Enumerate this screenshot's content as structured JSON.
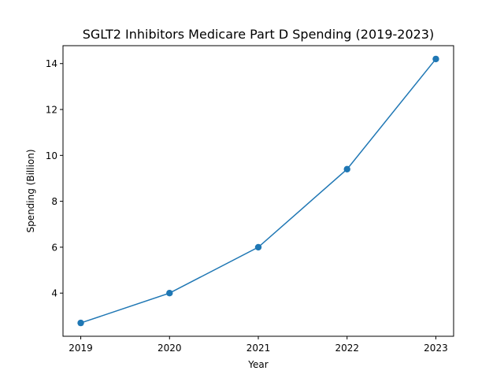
{
  "chart_data": {
    "type": "line",
    "title": "SGLT2 Inhibitors Medicare Part D Spending (2019-2023)",
    "xlabel": "Year",
    "ylabel": "Spending (Billion)",
    "x": [
      2019,
      2020,
      2021,
      2022,
      2023
    ],
    "x_tick_labels": [
      "2019",
      "2020",
      "2021",
      "2022",
      "2023"
    ],
    "series": [
      {
        "values": [
          2.7,
          4.0,
          6.0,
          9.4,
          14.2
        ]
      }
    ],
    "xlim": [
      2018.8,
      2023.2
    ],
    "ylim": [
      2.12,
      14.78
    ],
    "y_ticks": [
      4,
      6,
      8,
      10,
      12,
      14
    ],
    "y_tick_labels": [
      "4",
      "6",
      "8",
      "10",
      "12",
      "14"
    ],
    "grid": false,
    "line_color": "#1f77b4"
  }
}
